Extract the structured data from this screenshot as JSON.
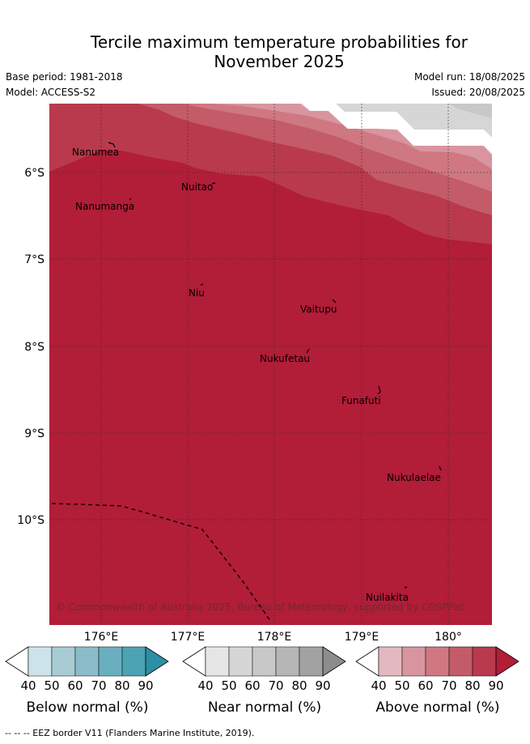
{
  "title_line1": "Tercile maximum temperature probabilities for",
  "title_line2": "November 2025",
  "base_period": "Base period: 1981-2018",
  "model": "Model: ACCESS-S2",
  "model_run": "Model run: 18/08/2025",
  "issued": "Issued: 20/08/2025",
  "lat_labels": [
    "6°S",
    "7°S",
    "8°S",
    "9°S",
    "10°S"
  ],
  "lon_labels": [
    "176°E",
    "177°E",
    "178°E",
    "179°E",
    "180°"
  ],
  "places": [
    "Nanumea",
    "Nuitao",
    "Nanumanga",
    "Niu",
    "Vaitupu",
    "Nukufetau",
    "Funafuti",
    "Nukulaelae",
    "Nuilakita"
  ],
  "copyright": "© Commonwealth of Australia 2025, Bureau of Meteorology, supported by COSPPac",
  "colorbars": [
    {
      "title": "Below normal (%)",
      "ticks": [
        "40",
        "50",
        "60",
        "70",
        "80",
        "90"
      ],
      "colors": [
        "#ffffff",
        "#cce3ea",
        "#a9cbd3",
        "#8abcc9",
        "#6aafbf",
        "#4ba3b4",
        "#2e8ea3"
      ]
    },
    {
      "title": "Near normal (%)",
      "ticks": [
        "40",
        "50",
        "60",
        "70",
        "80",
        "90"
      ],
      "colors": [
        "#ffffff",
        "#e6e6e6",
        "#d6d6d6",
        "#c8c8c8",
        "#b6b6b6",
        "#a2a2a2",
        "#8c8c8c"
      ]
    },
    {
      "title": "Above normal (%)",
      "ticks": [
        "40",
        "50",
        "60",
        "70",
        "80",
        "90"
      ],
      "colors": [
        "#ffffff",
        "#e3b8c0",
        "#d8959f",
        "#cf7882",
        "#c45b68",
        "#b93a4c",
        "#b21d38"
      ]
    }
  ],
  "footer": "--  --  -- EEZ border V11 (Flanders Marine Institute, 2019)."
}
